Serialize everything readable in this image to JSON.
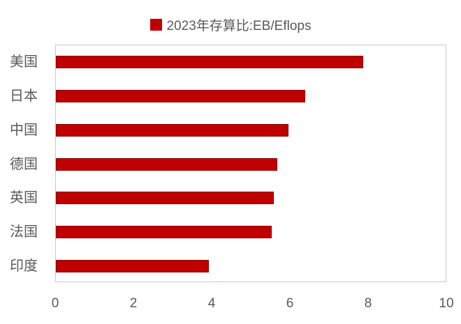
{
  "chart_data": {
    "type": "bar",
    "orientation": "horizontal",
    "title": "",
    "legend": [
      "2023年存算比:EB/Eflops"
    ],
    "legend_position": "top",
    "categories": [
      "美国",
      "日本",
      "中国",
      "德国",
      "英国",
      "法国",
      "印度"
    ],
    "series": [
      {
        "name": "2023年存算比:EB/Eflops",
        "values": [
          7.86,
          6.38,
          5.95,
          5.66,
          5.57,
          5.52,
          3.91
        ],
        "color": "#c00000"
      }
    ],
    "xlabel": "",
    "ylabel": "",
    "xlim": [
      0,
      10
    ],
    "xticks": [
      "0",
      "2",
      "4",
      "6",
      "8",
      "10"
    ],
    "grid": false
  },
  "legend": {
    "label": "2023年存算比:EB/Eflops",
    "color": "#c00000"
  },
  "categories": [
    {
      "label": "美国"
    },
    {
      "label": "日本"
    },
    {
      "label": "中国"
    },
    {
      "label": "德国"
    },
    {
      "label": "英国"
    },
    {
      "label": "法国"
    },
    {
      "label": "印度"
    }
  ],
  "ticks": [
    "0",
    "2",
    "4",
    "6",
    "8",
    "10"
  ],
  "colors": {
    "bar": "#c00000",
    "text": "#595959",
    "border": "#c8c8c8"
  }
}
